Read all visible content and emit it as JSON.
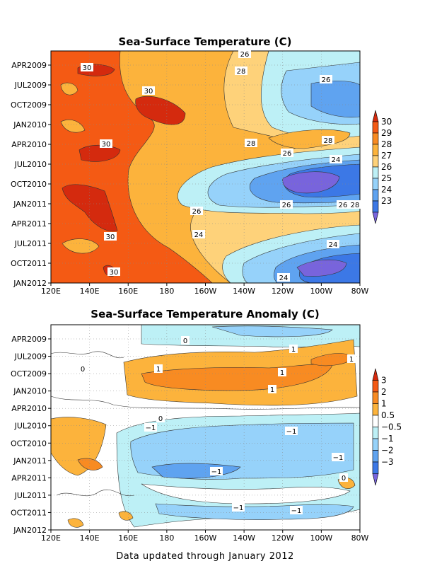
{
  "chart_data": [
    {
      "type": "heatmap",
      "title": "Sea-Surface Temperature (C)",
      "x_tick_labels": [
        "120E",
        "140E",
        "160E",
        "180",
        "160W",
        "140W",
        "120W",
        "100W",
        "80W"
      ],
      "y_tick_labels": [
        "APR2009",
        "JUL2009",
        "OCT2009",
        "JAN2010",
        "APR2010",
        "JUL2010",
        "OCT2010",
        "JAN2011",
        "APR2011",
        "JUL2011",
        "OCT2011",
        "JAN2012"
      ],
      "colorbar": {
        "labels": [
          "30",
          "29",
          "28",
          "27",
          "26",
          "25",
          "24",
          "23"
        ],
        "colors": [
          "#d42a0e",
          "#f45a14",
          "#f88b22",
          "#fcb33c",
          "#fed27a",
          "#bdf0f6",
          "#96d2fa",
          "#5fa3f0",
          "#3c78e6",
          "#7864dc"
        ]
      },
      "contour_labels": [
        "30",
        "30",
        "30",
        "30",
        "30",
        "26",
        "28",
        "26",
        "28",
        "26",
        "28",
        "26",
        "24",
        "24",
        "26",
        "26",
        "28",
        "24",
        "24"
      ],
      "grid": true
    },
    {
      "type": "heatmap",
      "title": "Sea-Surface Temperature Anomaly (C)",
      "x_tick_labels": [
        "120E",
        "140E",
        "160E",
        "180",
        "160W",
        "140W",
        "120W",
        "100W",
        "80W"
      ],
      "y_tick_labels": [
        "APR2009",
        "JUL2009",
        "OCT2009",
        "JAN2010",
        "APR2010",
        "JUL2010",
        "OCT2010",
        "JAN2011",
        "APR2011",
        "JUL2011",
        "OCT2011",
        "JAN2012"
      ],
      "colorbar": {
        "labels": [
          "3",
          "2",
          "1",
          "0.5",
          "−0.5",
          "−1",
          "−2",
          "−3"
        ],
        "colors": [
          "#d42a0e",
          "#f45a14",
          "#f88b22",
          "#fcb33c",
          "#ffffff",
          "#bdf0f6",
          "#96d2fa",
          "#5fa3f0",
          "#3c78e6",
          "#7864dc"
        ]
      },
      "contour_labels": [
        "0",
        "0",
        "1",
        "1",
        "1",
        "1",
        "0",
        "−1",
        "−1",
        "−1",
        "−1",
        "−1",
        "−1",
        "1",
        "0"
      ],
      "grid": true
    }
  ],
  "footer": "Data updated through January 2012"
}
